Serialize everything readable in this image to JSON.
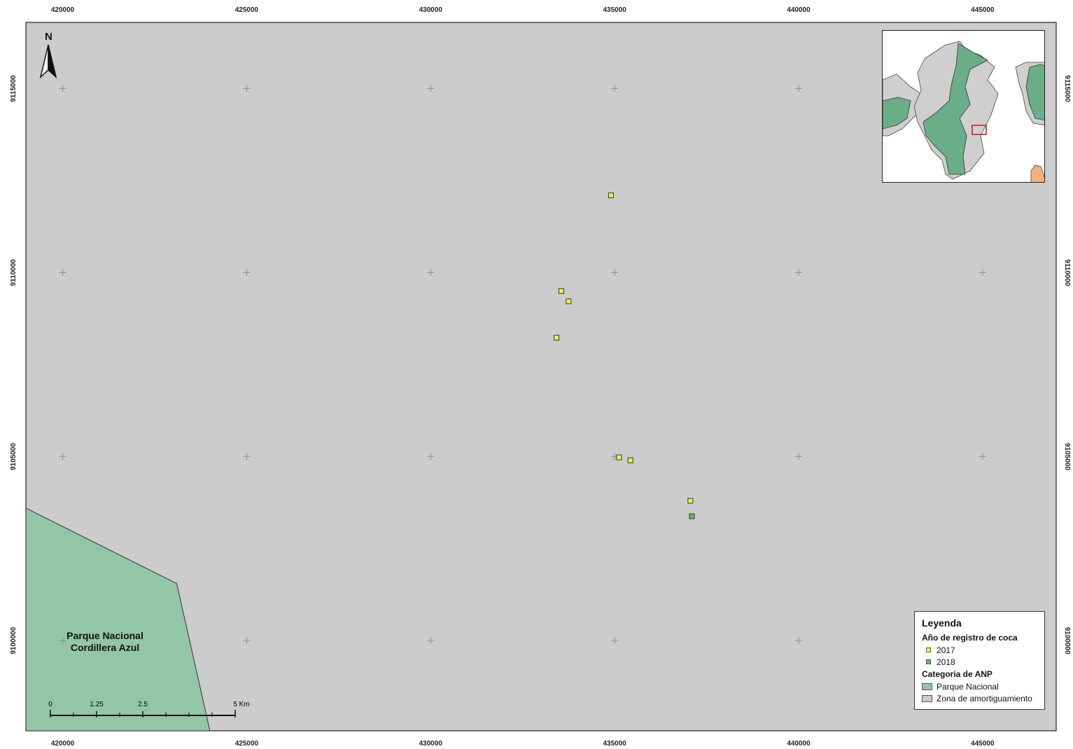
{
  "map": {
    "x_ticks": [
      "420000",
      "425000",
      "430000",
      "435000",
      "440000",
      "445000"
    ],
    "y_ticks": [
      "9115000",
      "9110000",
      "9105000",
      "9100000"
    ],
    "x_range": [
      419000,
      447000
    ],
    "y_range": [
      9097550,
      9116800
    ],
    "background_color": "#cccccc",
    "park_color": "#93c6a6",
    "park_label_line1": "Parque Nacional",
    "park_label_line2": "Cordillera Azul",
    "north_label": "N"
  },
  "points": [
    {
      "year": "2017",
      "x": 434900,
      "y": 9112100
    },
    {
      "year": "2017",
      "x": 433550,
      "y": 9109500
    },
    {
      "year": "2017",
      "x": 433750,
      "y": 9109220
    },
    {
      "year": "2017",
      "x": 433420,
      "y": 9108230
    },
    {
      "year": "2017",
      "x": 435120,
      "y": 9104980
    },
    {
      "year": "2017",
      "x": 435430,
      "y": 9104900
    },
    {
      "year": "2017",
      "x": 437060,
      "y": 9103800
    },
    {
      "year": "2018",
      "x": 437100,
      "y": 9103380
    }
  ],
  "park_polygon": [
    {
      "x": 419000,
      "y": 9103600
    },
    {
      "x": 423100,
      "y": 9101550
    },
    {
      "x": 424000,
      "y": 9097550
    },
    {
      "x": 419000,
      "y": 9097550
    }
  ],
  "scale": {
    "labels": [
      "0",
      "1.25",
      "2.5",
      "5 Km"
    ]
  },
  "legend": {
    "title": "Leyenda",
    "points_heading": "Año de registro de coca",
    "items_points": [
      {
        "label": "2017",
        "color": "#f2f23a"
      },
      {
        "label": "2018",
        "color": "#4fc94f"
      }
    ],
    "areas_heading": "Categoria de ANP",
    "items_areas": [
      {
        "label": "Parque Nacional",
        "color": "#93c6a6"
      },
      {
        "label": "Zona de amortiguamiento",
        "color": "#cccccc"
      }
    ]
  },
  "inset": {
    "park_color": "#6aae88",
    "buffer_color": "#cfcfcf",
    "highlight_color": "#cc2222",
    "other_color": "#f2b27a"
  }
}
